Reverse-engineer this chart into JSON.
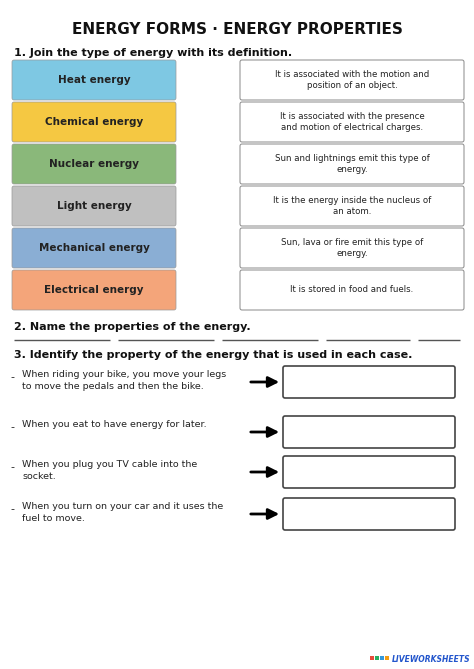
{
  "title": "ENERGY FORMS · ENERGY PROPERTIES",
  "bg_color": "#ffffff",
  "section1_label": "1. Join the type of energy with its definition.",
  "energy_boxes": [
    {
      "label": "Heat energy",
      "color": "#7ec8e3"
    },
    {
      "label": "Chemical energy",
      "color": "#f5c842"
    },
    {
      "label": "Nuclear energy",
      "color": "#8ab87a"
    },
    {
      "label": "Light energy",
      "color": "#c0c0c0"
    },
    {
      "label": "Mechanical energy",
      "color": "#8aaed4"
    },
    {
      "label": "Electrical energy",
      "color": "#f4a57a"
    }
  ],
  "definition_boxes": [
    "It is associated with the motion and\nposition of an object.",
    "It is associated with the presence\nand motion of electrical charges.",
    "Sun and lightnings emit this type of\nenergy.",
    "It is the energy inside the nucleus of\nan atom.",
    "Sun, lava or fire emit this type of\nenergy.",
    "It is stored in food and fuels."
  ],
  "section2_label": "2. Name the properties of the energy.",
  "section3_label": "3. Identify the property of the energy that is used in each case.",
  "cases": [
    "When riding your bike, you move your legs\nto move the pedals and then the bike.",
    "When you eat to have energy for later.",
    "When you plug you TV cable into the\nsocket.",
    "When you turn on your car and it uses the\nfuel to move."
  ],
  "watermark": "LIVEWORKSHEETS",
  "wm_colors": [
    "#e74c3c",
    "#27ae60",
    "#3498db",
    "#f39c12"
  ]
}
